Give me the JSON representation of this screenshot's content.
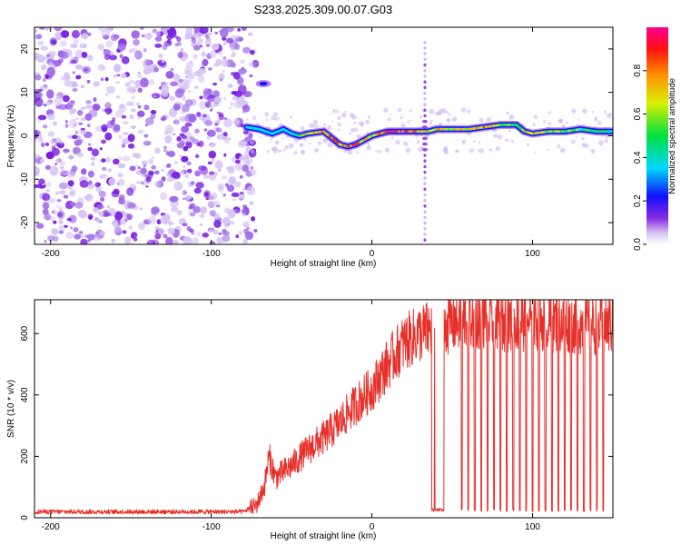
{
  "title": "S233.2025.309.00.07.G03",
  "colors": {
    "trace": "#e8302a",
    "scatter": "#8a2be2",
    "axis": "#000000"
  },
  "chart_data": [
    {
      "type": "heatmap",
      "name": "spectrogram",
      "xlabel": "Height of straight line (km)",
      "ylabel": "Frequency (Hz)",
      "xlim": [
        -210,
        150
      ],
      "ylim": [
        -25,
        25
      ],
      "xticks": [
        -200,
        -100,
        0,
        100
      ],
      "yticks": [
        -20,
        -10,
        0,
        10,
        20
      ],
      "colorbar": {
        "label": "Normalized spectral amplitude",
        "range": [
          0,
          1
        ],
        "ticks": [
          "0.0",
          "0.2",
          "0.4",
          "0.6",
          "0.8"
        ]
      },
      "noise_region_x": [
        -210,
        -78
      ],
      "ridge": {
        "x": [
          -78,
          -70,
          -62,
          -55,
          -50,
          -45,
          -40,
          -30,
          -20,
          -15,
          -10,
          -5,
          0,
          5,
          10,
          20,
          30,
          35,
          40,
          50,
          60,
          70,
          80,
          90,
          95,
          100,
          110,
          120,
          130,
          140,
          150
        ],
        "y": [
          2,
          1.5,
          0.5,
          1.5,
          0.5,
          0,
          0.5,
          1,
          -2,
          -2.5,
          -2,
          -1,
          0,
          0.5,
          1,
          1,
          1,
          1,
          1.5,
          1.5,
          1.5,
          2,
          2.5,
          2.5,
          1,
          0.5,
          1,
          1,
          1.5,
          1,
          1
        ],
        "amplitude": [
          0.35,
          0.3,
          0.3,
          0.35,
          0.35,
          0.6,
          0.75,
          0.8,
          0.85,
          0.9,
          0.85,
          0.75,
          0.7,
          0.8,
          0.95,
          0.95,
          0.8,
          0.7,
          0.75,
          0.7,
          0.75,
          0.8,
          0.6,
          0.55,
          0.7,
          0.8,
          0.65,
          0.6,
          0.55,
          0.5,
          0.45
        ]
      },
      "features": {
        "hump": {
          "x": [
            -70,
            -65
          ],
          "y": 12
        },
        "vertical_spike_x": 33
      }
    },
    {
      "type": "line",
      "name": "snr",
      "xlabel": "Height of straight line (km)",
      "ylabel": "SNR (10 * v/v)",
      "xlim": [
        -210,
        150
      ],
      "ylim": [
        0,
        710
      ],
      "xticks": [
        -200,
        -100,
        0,
        100
      ],
      "yticks": [
        0,
        200,
        400,
        600
      ],
      "envelope": {
        "x": [
          -210,
          -80,
          -72,
          -67,
          -64,
          -60,
          -50,
          -40,
          -30,
          -20,
          -10,
          0,
          10,
          20,
          30,
          40,
          50,
          60,
          70,
          80,
          90,
          100,
          110,
          120,
          130,
          140,
          150
        ],
        "y": [
          18,
          18,
          40,
          100,
          200,
          130,
          170,
          220,
          260,
          310,
          370,
          420,
          500,
          570,
          600,
          620,
          635,
          650,
          650,
          640,
          640,
          645,
          640,
          635,
          630,
          625,
          630
        ]
      },
      "noise_amplitude": 25,
      "dropouts_x": [
        38,
        40,
        42,
        43,
        44,
        56,
        60,
        64,
        68,
        72,
        76,
        80,
        84,
        88,
        92,
        96,
        100,
        104,
        108,
        112,
        116,
        120,
        124,
        128,
        132,
        136,
        140,
        144
      ],
      "dropout_value": 25
    }
  ]
}
